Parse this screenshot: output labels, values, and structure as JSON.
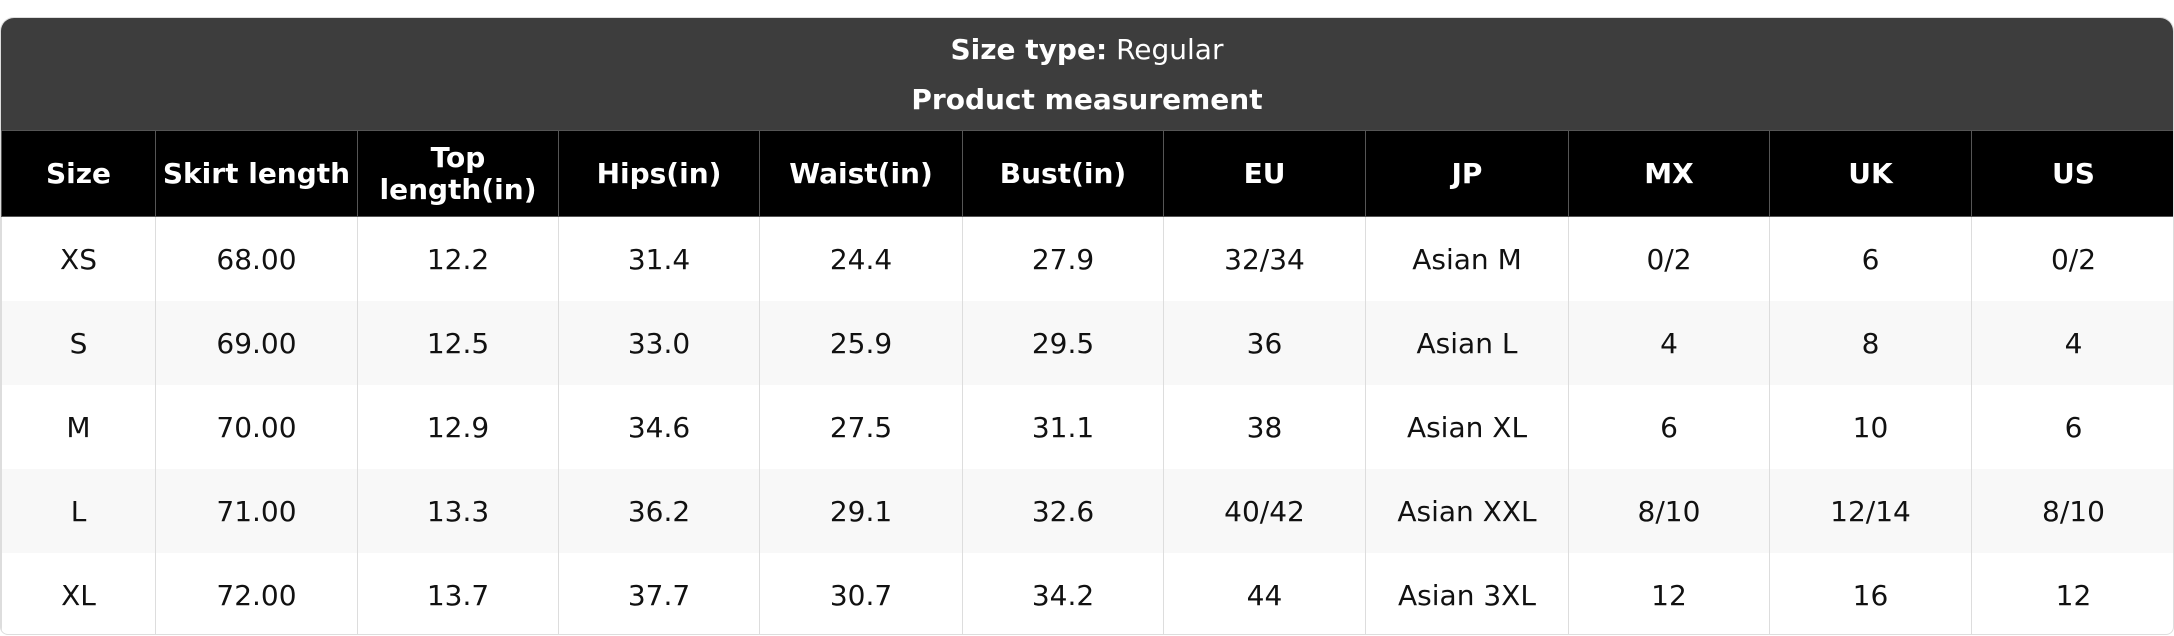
{
  "header": {
    "label": "Size type:",
    "value": "Regular",
    "subtitle": "Product measurement"
  },
  "table": {
    "columns": [
      "Size",
      "Skirt length",
      "Top length(in)",
      "Hips(in)",
      "Waist(in)",
      "Bust(in)",
      "EU",
      "JP",
      "MX",
      "UK",
      "US"
    ],
    "rows": [
      [
        "XS",
        "68.00",
        "12.2",
        "31.4",
        "24.4",
        "27.9",
        "32/34",
        "Asian M",
        "0/2",
        "6",
        "0/2"
      ],
      [
        "S",
        "69.00",
        "12.5",
        "33.0",
        "25.9",
        "29.5",
        "36",
        "Asian L",
        "4",
        "8",
        "4"
      ],
      [
        "M",
        "70.00",
        "12.9",
        "34.6",
        "27.5",
        "31.1",
        "38",
        "Asian XL",
        "6",
        "10",
        "6"
      ],
      [
        "L",
        "71.00",
        "13.3",
        "36.2",
        "29.1",
        "32.6",
        "40/42",
        "Asian XXL",
        "8/10",
        "12/14",
        "8/10"
      ],
      [
        "XL",
        "72.00",
        "13.7",
        "37.7",
        "30.7",
        "34.2",
        "44",
        "Asian 3XL",
        "12",
        "16",
        "12"
      ]
    ]
  }
}
